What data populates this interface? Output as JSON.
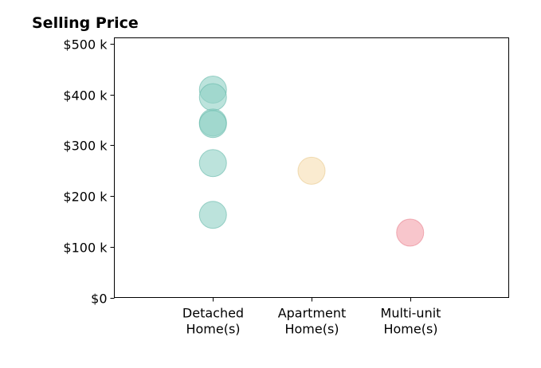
{
  "chart_data": {
    "type": "scatter",
    "title": "Selling Price",
    "xlabel": "",
    "ylabel": "",
    "categories": [
      [
        "Detached",
        "Home(s)"
      ],
      [
        "Apartment",
        "Home(s)"
      ],
      [
        "Multi-unit",
        "Home(s)"
      ]
    ],
    "y_ticks": [
      0,
      100,
      200,
      300,
      400,
      500
    ],
    "y_tick_labels": [
      "$0",
      "$100 k",
      "$200 k",
      "$300 k",
      "$400 k",
      "$500 k"
    ],
    "ylim": [
      0,
      512
    ],
    "xlim": [
      0,
      4
    ],
    "grid": false,
    "points": [
      {
        "category": 0,
        "y": 410
      },
      {
        "category": 0,
        "y": 395
      },
      {
        "category": 0,
        "y": 345
      },
      {
        "category": 0,
        "y": 342
      },
      {
        "category": 0,
        "y": 265
      },
      {
        "category": 0,
        "y": 163
      },
      {
        "category": 1,
        "y": 250
      },
      {
        "category": 2,
        "y": 128
      }
    ],
    "colors": [
      "#8fd1c4",
      "#f7deb0",
      "#f4a0aa"
    ],
    "stroke_colors": [
      "#62b8a8",
      "#e8c88a",
      "#e8808e"
    ]
  }
}
